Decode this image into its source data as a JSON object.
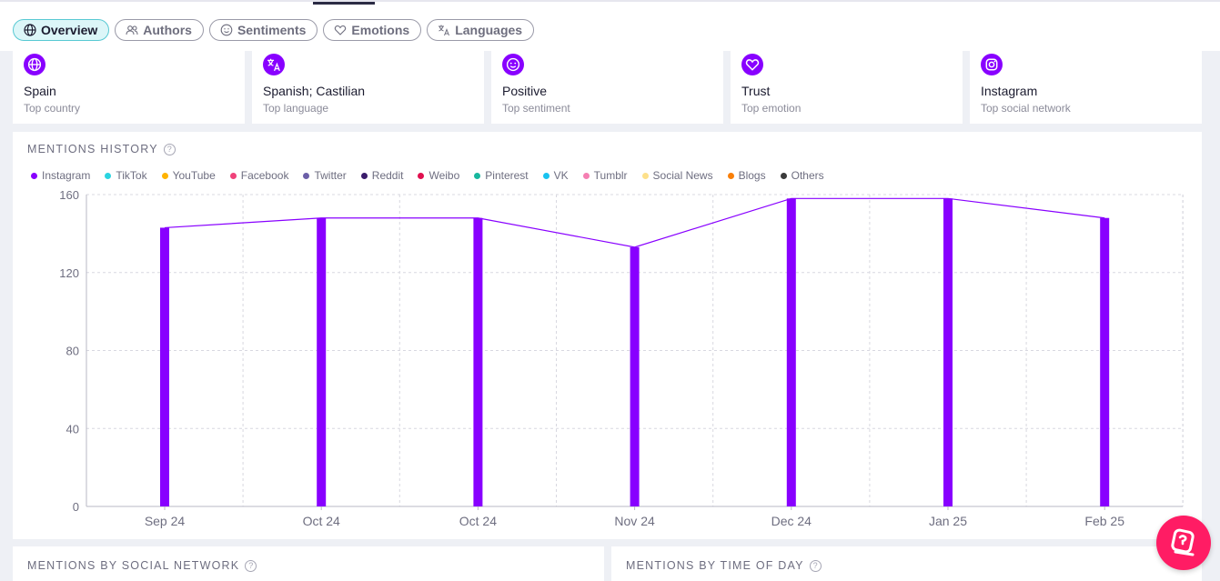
{
  "tabs": [
    {
      "label": "Overview",
      "icon": "globe-icon",
      "active": true
    },
    {
      "label": "Authors",
      "icon": "users-icon"
    },
    {
      "label": "Sentiments",
      "icon": "smile-icon"
    },
    {
      "label": "Emotions",
      "icon": "heart-icon"
    },
    {
      "label": "Languages",
      "icon": "translate-icon"
    }
  ],
  "cards": [
    {
      "value": "Spain",
      "label": "Top country",
      "icon": "globe-icon"
    },
    {
      "value": "Spanish; Castilian",
      "label": "Top language",
      "icon": "translate-icon"
    },
    {
      "value": "Positive",
      "label": "Top sentiment",
      "icon": "smile-icon"
    },
    {
      "value": "Trust",
      "label": "Top emotion",
      "icon": "heart-icon"
    },
    {
      "value": "Instagram",
      "label": "Top social network",
      "icon": "instagram-icon"
    }
  ],
  "history": {
    "title": "MENTIONS HISTORY",
    "legend": [
      {
        "name": "Instagram",
        "color": "#8800ff"
      },
      {
        "name": "TikTok",
        "color": "#2ad4e0"
      },
      {
        "name": "YouTube",
        "color": "#ffb300"
      },
      {
        "name": "Facebook",
        "color": "#f0427a"
      },
      {
        "name": "Twitter",
        "color": "#6c5fa8"
      },
      {
        "name": "Reddit",
        "color": "#3a1c6b"
      },
      {
        "name": "Weibo",
        "color": "#e0104f"
      },
      {
        "name": "Pinterest",
        "color": "#18b79e"
      },
      {
        "name": "VK",
        "color": "#19c3f0"
      },
      {
        "name": "Tumblr",
        "color": "#f57fb2"
      },
      {
        "name": "Social News",
        "color": "#fde08a"
      },
      {
        "name": "Blogs",
        "color": "#f97f07"
      },
      {
        "name": "Others",
        "color": "#3b3b3b"
      }
    ]
  },
  "chart_data": {
    "type": "bar",
    "categories": [
      "Sep 24",
      "Oct 24",
      "Oct 24",
      "Nov 24",
      "Dec 24",
      "Jan 25",
      "Feb 25"
    ],
    "series": [
      {
        "name": "Instagram",
        "values": [
          143,
          148,
          148,
          133,
          158,
          158,
          148
        ],
        "color": "#8800ff"
      }
    ],
    "line_overlay": true,
    "ylim": [
      0,
      160
    ],
    "yticks": [
      "0",
      "40",
      "80",
      "120",
      "160"
    ],
    "grid": true,
    "legend_position": "top-left"
  },
  "social_panel": {
    "title": "MENTIONS BY SOCIAL NETWORK"
  },
  "time_panel": {
    "title": "MENTIONS BY TIME OF DAY"
  },
  "help_mark": "?",
  "fab": {
    "icon": "chat-help-icon"
  }
}
